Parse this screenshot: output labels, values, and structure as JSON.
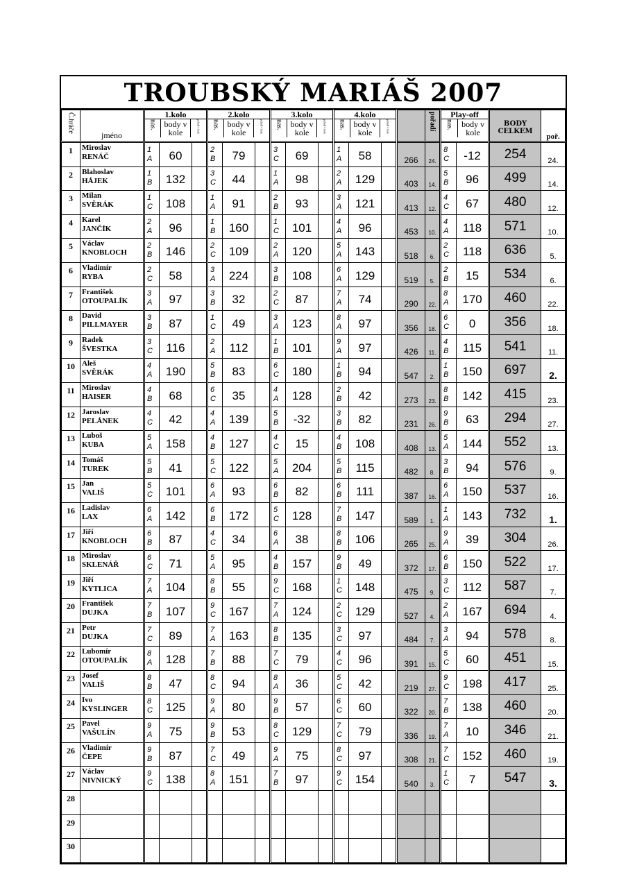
{
  "title": "TROUBSKÝ MARIÁŠ 2007",
  "header": {
    "player_no": "Č.hráče",
    "name": "jméno",
    "rounds": [
      "1.kolo",
      "2.kolo",
      "3.kolo",
      "4.kolo"
    ],
    "nas": "nas.",
    "body": "body v kole",
    "round_rank": "pořadí v kole",
    "rank": "pořadí",
    "playoff": "Play-off",
    "total": "BODY CELKEM",
    "final_rank": "poř."
  },
  "colors": {
    "grey": "#c4c4c4"
  },
  "rows": [
    {
      "num": "1",
      "first": "Miroslav",
      "last": "RENÁČ",
      "rounds": [
        [
          "1",
          "A",
          "60"
        ],
        [
          "2",
          "B",
          "79"
        ],
        [
          "3",
          "C",
          "69"
        ],
        [
          "1",
          "A",
          "58"
        ]
      ],
      "subtotal": "266",
      "subrank": "24.",
      "playoff": [
        "8",
        "C",
        "-12"
      ],
      "total": "254",
      "rank": "24."
    },
    {
      "num": "2",
      "first": "Blahoslav",
      "last": "HÁJEK",
      "rounds": [
        [
          "1",
          "B",
          "132"
        ],
        [
          "3",
          "C",
          "44"
        ],
        [
          "1",
          "A",
          "98"
        ],
        [
          "2",
          "A",
          "129"
        ]
      ],
      "subtotal": "403",
      "subrank": "14.",
      "playoff": [
        "5",
        "B",
        "96"
      ],
      "total": "499",
      "rank": "14."
    },
    {
      "num": "3",
      "first": "Milan",
      "last": "SVĚRÁK",
      "rounds": [
        [
          "1",
          "C",
          "108"
        ],
        [
          "1",
          "A",
          "91"
        ],
        [
          "2",
          "B",
          "93"
        ],
        [
          "3",
          "A",
          "121"
        ]
      ],
      "subtotal": "413",
      "subrank": "12.",
      "playoff": [
        "4",
        "C",
        "67"
      ],
      "total": "480",
      "rank": "12."
    },
    {
      "num": "4",
      "first": "Karel",
      "last": "JANČÍK",
      "rounds": [
        [
          "2",
          "A",
          "96"
        ],
        [
          "1",
          "B",
          "160"
        ],
        [
          "1",
          "C",
          "101"
        ],
        [
          "4",
          "A",
          "96"
        ]
      ],
      "subtotal": "453",
      "subrank": "10.",
      "playoff": [
        "4",
        "A",
        "118"
      ],
      "total": "571",
      "rank": "10."
    },
    {
      "num": "5",
      "first": "Václav",
      "last": "KNOBLOCH",
      "rounds": [
        [
          "2",
          "B",
          "146"
        ],
        [
          "2",
          "C",
          "109"
        ],
        [
          "2",
          "A",
          "120"
        ],
        [
          "5",
          "A",
          "143"
        ]
      ],
      "subtotal": "518",
      "subrank": "6.",
      "playoff": [
        "2",
        "C",
        "118"
      ],
      "total": "636",
      "rank": "5."
    },
    {
      "num": "6",
      "first": "Vladimír",
      "last": "RYBA",
      "rounds": [
        [
          "2",
          "C",
          "58"
        ],
        [
          "3",
          "A",
          "224"
        ],
        [
          "3",
          "B",
          "108"
        ],
        [
          "6",
          "A",
          "129"
        ]
      ],
      "subtotal": "519",
      "subrank": "5.",
      "playoff": [
        "2",
        "B",
        "15"
      ],
      "total": "534",
      "rank": "6."
    },
    {
      "num": "7",
      "first": "František",
      "last": "OTOUPALÍK",
      "rounds": [
        [
          "3",
          "A",
          "97"
        ],
        [
          "3",
          "B",
          "32"
        ],
        [
          "2",
          "C",
          "87"
        ],
        [
          "7",
          "A",
          "74"
        ]
      ],
      "subtotal": "290",
      "subrank": "22.",
      "playoff": [
        "8",
        "A",
        "170"
      ],
      "total": "460",
      "rank": "22."
    },
    {
      "num": "8",
      "first": "David",
      "last": "PILLMAYER",
      "rounds": [
        [
          "3",
          "B",
          "87"
        ],
        [
          "1",
          "C",
          "49"
        ],
        [
          "3",
          "A",
          "123"
        ],
        [
          "8",
          "A",
          "97"
        ]
      ],
      "subtotal": "356",
      "subrank": "18.",
      "playoff": [
        "6",
        "C",
        "0"
      ],
      "total": "356",
      "rank": "18."
    },
    {
      "num": "9",
      "first": "Radek",
      "last": "ŠVESTKA",
      "rounds": [
        [
          "3",
          "C",
          "116"
        ],
        [
          "2",
          "A",
          "112"
        ],
        [
          "1",
          "B",
          "101"
        ],
        [
          "9",
          "A",
          "97"
        ]
      ],
      "subtotal": "426",
      "subrank": "11.",
      "playoff": [
        "4",
        "B",
        "115"
      ],
      "total": "541",
      "rank": "11."
    },
    {
      "num": "10",
      "first": "Aleš",
      "last": "SVĚRÁK",
      "rounds": [
        [
          "4",
          "A",
          "190"
        ],
        [
          "5",
          "B",
          "83"
        ],
        [
          "6",
          "C",
          "180"
        ],
        [
          "1",
          "B",
          "94"
        ]
      ],
      "subtotal": "547",
      "subrank": "2.",
      "playoff": [
        "1",
        "B",
        "150"
      ],
      "total": "697",
      "rank": "2."
    },
    {
      "num": "11",
      "first": "Miroslav",
      "last": "HAISER",
      "rounds": [
        [
          "4",
          "B",
          "68"
        ],
        [
          "6",
          "C",
          "35"
        ],
        [
          "4",
          "A",
          "128"
        ],
        [
          "2",
          "B",
          "42"
        ]
      ],
      "subtotal": "273",
      "subrank": "23.",
      "playoff": [
        "8",
        "B",
        "142"
      ],
      "total": "415",
      "rank": "23."
    },
    {
      "num": "12",
      "first": "Jaroslav",
      "last": "PELÁNEK",
      "rounds": [
        [
          "4",
          "C",
          "42"
        ],
        [
          "4",
          "A",
          "139"
        ],
        [
          "5",
          "B",
          "-32"
        ],
        [
          "3",
          "B",
          "82"
        ]
      ],
      "subtotal": "231",
      "subrank": "26.",
      "playoff": [
        "9",
        "B",
        "63"
      ],
      "total": "294",
      "rank": "27."
    },
    {
      "num": "13",
      "first": "Luboš",
      "last": "KUBA",
      "rounds": [
        [
          "5",
          "A",
          "158"
        ],
        [
          "4",
          "B",
          "127"
        ],
        [
          "4",
          "C",
          "15"
        ],
        [
          "4",
          "B",
          "108"
        ]
      ],
      "subtotal": "408",
      "subrank": "13.",
      "playoff": [
        "5",
        "A",
        "144"
      ],
      "total": "552",
      "rank": "13."
    },
    {
      "num": "14",
      "first": "Tomáš",
      "last": "TUREK",
      "rounds": [
        [
          "5",
          "B",
          "41"
        ],
        [
          "5",
          "C",
          "122"
        ],
        [
          "5",
          "A",
          "204"
        ],
        [
          "5",
          "B",
          "115"
        ]
      ],
      "subtotal": "482",
      "subrank": "8.",
      "playoff": [
        "3",
        "B",
        "94"
      ],
      "total": "576",
      "rank": "9."
    },
    {
      "num": "15",
      "first": "Jan",
      "last": "VALIŠ",
      "rounds": [
        [
          "5",
          "C",
          "101"
        ],
        [
          "6",
          "A",
          "93"
        ],
        [
          "6",
          "B",
          "82"
        ],
        [
          "6",
          "B",
          "111"
        ]
      ],
      "subtotal": "387",
      "subrank": "16.",
      "playoff": [
        "6",
        "A",
        "150"
      ],
      "total": "537",
      "rank": "16."
    },
    {
      "num": "16",
      "first": "Ladislav",
      "last": "LAX",
      "rounds": [
        [
          "6",
          "A",
          "142"
        ],
        [
          "6",
          "B",
          "172"
        ],
        [
          "5",
          "C",
          "128"
        ],
        [
          "7",
          "B",
          "147"
        ]
      ],
      "subtotal": "589",
      "subrank": "1.",
      "playoff": [
        "1",
        "A",
        "143"
      ],
      "total": "732",
      "rank": "1."
    },
    {
      "num": "17",
      "first": "Jiří",
      "last": "KNOBLOCH",
      "rounds": [
        [
          "6",
          "B",
          "87"
        ],
        [
          "4",
          "C",
          "34"
        ],
        [
          "6",
          "A",
          "38"
        ],
        [
          "8",
          "B",
          "106"
        ]
      ],
      "subtotal": "265",
      "subrank": "25.",
      "playoff": [
        "9",
        "A",
        "39"
      ],
      "total": "304",
      "rank": "26."
    },
    {
      "num": "18",
      "first": "Miroslav",
      "last": "SKLENÁŘ",
      "rounds": [
        [
          "6",
          "C",
          "71"
        ],
        [
          "5",
          "A",
          "95"
        ],
        [
          "4",
          "B",
          "157"
        ],
        [
          "9",
          "B",
          "49"
        ]
      ],
      "subtotal": "372",
      "subrank": "17.",
      "playoff": [
        "6",
        "B",
        "150"
      ],
      "total": "522",
      "rank": "17."
    },
    {
      "num": "19",
      "first": "Jiří",
      "last": "KYTLICA",
      "rounds": [
        [
          "7",
          "A",
          "104"
        ],
        [
          "8",
          "B",
          "55"
        ],
        [
          "9",
          "C",
          "168"
        ],
        [
          "1",
          "C",
          "148"
        ]
      ],
      "subtotal": "475",
      "subrank": "9.",
      "playoff": [
        "3",
        "C",
        "112"
      ],
      "total": "587",
      "rank": "7."
    },
    {
      "num": "20",
      "first": "František",
      "last": "DUJKA",
      "rounds": [
        [
          "7",
          "B",
          "107"
        ],
        [
          "9",
          "C",
          "167"
        ],
        [
          "7",
          "A",
          "124"
        ],
        [
          "2",
          "C",
          "129"
        ]
      ],
      "subtotal": "527",
      "subrank": "4.",
      "playoff": [
        "2",
        "A",
        "167"
      ],
      "total": "694",
      "rank": "4."
    },
    {
      "num": "21",
      "first": "Petr",
      "last": "DUJKA",
      "rounds": [
        [
          "7",
          "C",
          "89"
        ],
        [
          "7",
          "A",
          "163"
        ],
        [
          "8",
          "B",
          "135"
        ],
        [
          "3",
          "C",
          "97"
        ]
      ],
      "subtotal": "484",
      "subrank": "7.",
      "playoff": [
        "3",
        "A",
        "94"
      ],
      "total": "578",
      "rank": "8."
    },
    {
      "num": "22",
      "first": "Lubomír",
      "last": "OTOUPALÍK",
      "rounds": [
        [
          "8",
          "A",
          "128"
        ],
        [
          "7",
          "B",
          "88"
        ],
        [
          "7",
          "C",
          "79"
        ],
        [
          "4",
          "C",
          "96"
        ]
      ],
      "subtotal": "391",
      "subrank": "15.",
      "playoff": [
        "5",
        "C",
        "60"
      ],
      "total": "451",
      "rank": "15."
    },
    {
      "num": "23",
      "first": "Josef",
      "last": "VALIŠ",
      "rounds": [
        [
          "8",
          "B",
          "47"
        ],
        [
          "8",
          "C",
          "94"
        ],
        [
          "8",
          "A",
          "36"
        ],
        [
          "5",
          "C",
          "42"
        ]
      ],
      "subtotal": "219",
      "subrank": "27.",
      "playoff": [
        "9",
        "C",
        "198"
      ],
      "total": "417",
      "rank": "25."
    },
    {
      "num": "24",
      "first": "Ivo",
      "last": "KYSLINGER",
      "rounds": [
        [
          "8",
          "C",
          "125"
        ],
        [
          "9",
          "A",
          "80"
        ],
        [
          "9",
          "B",
          "57"
        ],
        [
          "6",
          "C",
          "60"
        ]
      ],
      "subtotal": "322",
      "subrank": "20.",
      "playoff": [
        "7",
        "B",
        "138"
      ],
      "total": "460",
      "rank": "20."
    },
    {
      "num": "25",
      "first": "Pavel",
      "last": "VAŠULÍN",
      "rounds": [
        [
          "9",
          "A",
          "75"
        ],
        [
          "9",
          "B",
          "53"
        ],
        [
          "8",
          "C",
          "129"
        ],
        [
          "7",
          "C",
          "79"
        ]
      ],
      "subtotal": "336",
      "subrank": "19.",
      "playoff": [
        "7",
        "A",
        "10"
      ],
      "total": "346",
      "rank": "21."
    },
    {
      "num": "26",
      "first": "Vladimír",
      "last": "ČEPE",
      "rounds": [
        [
          "9",
          "B",
          "87"
        ],
        [
          "7",
          "C",
          "49"
        ],
        [
          "9",
          "A",
          "75"
        ],
        [
          "8",
          "C",
          "97"
        ]
      ],
      "subtotal": "308",
      "subrank": "21.",
      "playoff": [
        "7",
        "C",
        "152"
      ],
      "total": "460",
      "rank": "19."
    },
    {
      "num": "27",
      "first": "Václav",
      "last": "NIVNICKÝ",
      "rounds": [
        [
          "9",
          "C",
          "138"
        ],
        [
          "8",
          "A",
          "151"
        ],
        [
          "7",
          "B",
          "97"
        ],
        [
          "9",
          "C",
          "154"
        ]
      ],
      "subtotal": "540",
      "subrank": "3.",
      "playoff": [
        "1",
        "C",
        "7"
      ],
      "total": "547",
      "rank": "3."
    },
    {
      "num": "28"
    },
    {
      "num": "29"
    },
    {
      "num": "30"
    }
  ]
}
